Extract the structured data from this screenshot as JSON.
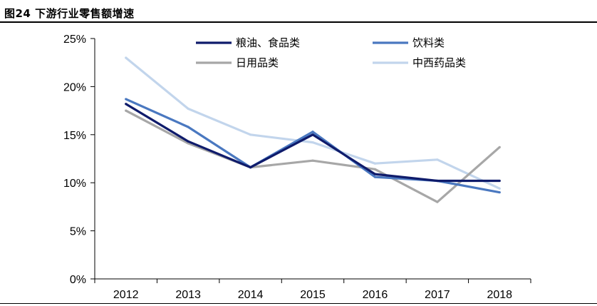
{
  "figure": {
    "title": "图24 下游行业零售额增速"
  },
  "chart_data": {
    "type": "line",
    "title": "",
    "xlabel": "",
    "ylabel": "",
    "categories": [
      "2012",
      "2013",
      "2014",
      "2015",
      "2016",
      "2017",
      "2018"
    ],
    "ylim": [
      0,
      25
    ],
    "yticks": [
      0,
      5,
      10,
      15,
      20,
      25
    ],
    "ytick_labels": [
      "0%",
      "5%",
      "10%",
      "15%",
      "20%",
      "25%"
    ],
    "grid": false,
    "legend_position": "top",
    "series": [
      {
        "name": "粮油、食品类",
        "color": "#0f1b6b",
        "values": [
          18.2,
          14.3,
          11.6,
          15.0,
          10.9,
          10.2,
          10.2
        ]
      },
      {
        "name": "饮料类",
        "color": "#4a78c0",
        "values": [
          18.7,
          15.8,
          11.6,
          15.3,
          10.6,
          10.2,
          9.0
        ]
      },
      {
        "name": "日用品类",
        "color": "#a7a7a7",
        "values": [
          17.5,
          14.1,
          11.6,
          12.3,
          11.4,
          8.0,
          13.7
        ]
      },
      {
        "name": "中西药品类",
        "color": "#c2d5ec",
        "values": [
          23.0,
          17.7,
          15.0,
          14.2,
          12.0,
          12.4,
          9.4
        ]
      }
    ]
  }
}
